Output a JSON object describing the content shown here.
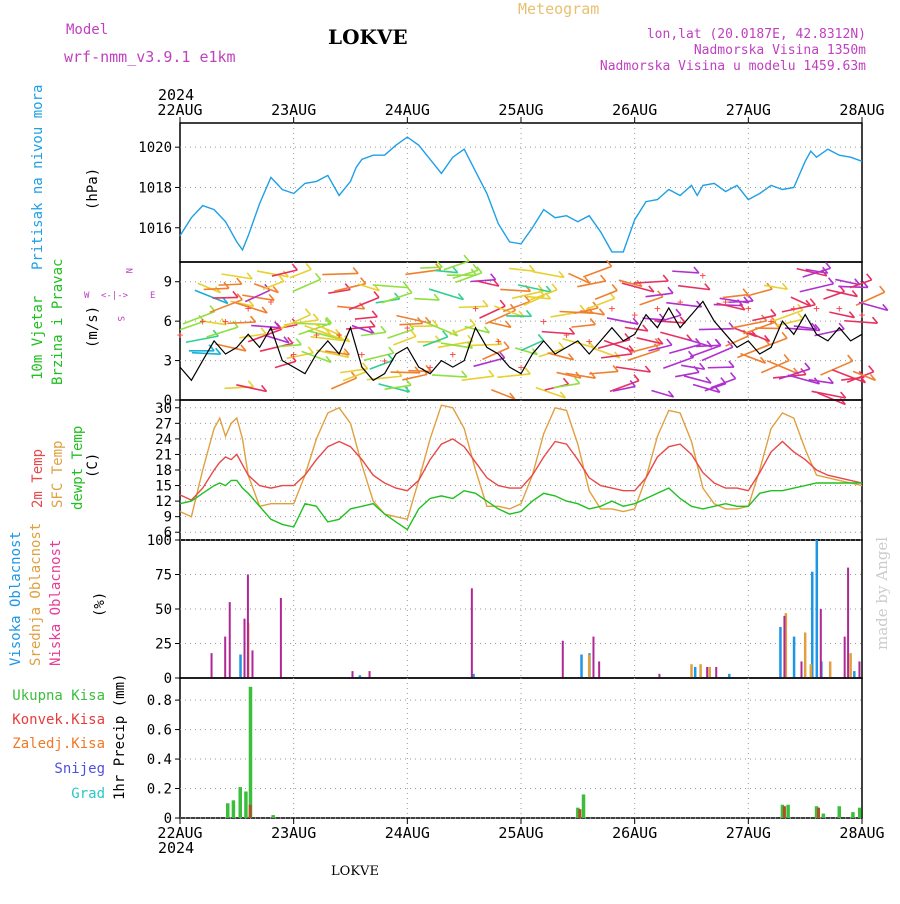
{
  "header": {
    "model_label": "Model",
    "model_name": "wrf-nmm_v3.9.1 e1km",
    "station": "LOKVE",
    "meteogram_label": "Meteogram",
    "lonlat": "lon,lat (20.0187E, 42.8312N)",
    "elevation": "Nadmorska Visina 1350m",
    "model_elevation": "Nadmorska Visina u modelu 1459.63m",
    "year": "2024",
    "footer_station": "LOKVE",
    "credit": "made by Angel"
  },
  "colors": {
    "pressure": "#1ea0e6",
    "temp2m": "#e84848",
    "sfc_temp": "#e0a040",
    "dewpoint": "#20c020",
    "high_cloud": "#1e96e6",
    "mid_cloud": "#e0a040",
    "low_cloud": "#b02896",
    "precip_total": "#3cbe3c",
    "precip_conv": "#b05028",
    "wind_speed": "#000000",
    "gust": "#ff4040",
    "convkisa_label": "#e83c3c",
    "zaledj_label": "#f07828",
    "snijeg_label": "#5050e0",
    "grad_label": "#28c8c8",
    "title_magenta": "#c040c0",
    "title_orange": "#e8c070"
  },
  "x_axis": {
    "top_labels": [
      "22AUG",
      "23AUG",
      "24AUG",
      "25AUG",
      "26AUG",
      "27AUG",
      "28AUG"
    ],
    "bottom_labels": [
      "22AUG",
      "23AUG",
      "24AUG",
      "25AUG",
      "26AUG",
      "27AUG",
      "28AUG"
    ],
    "start_year": "2024",
    "end_year": "2024"
  },
  "panels": {
    "pressure": {
      "label": "Pritisak na nivou mora",
      "unit": "(hPa)",
      "yticks": [
        "1016",
        "1018",
        "1020"
      ]
    },
    "wind": {
      "label1": "10m Vjetar",
      "label2": "Brzina i Pravac",
      "unit": "(m/s)",
      "yticks": [
        "0",
        "3",
        "6",
        "9"
      ],
      "compass": {
        "n": "N",
        "s": "S",
        "w": "W",
        "e": "E"
      }
    },
    "temperature": {
      "label_2m": "2m Temp",
      "label_sfc": "SFC Temp",
      "label_dew": "dewpt Temp",
      "unit": "(C)",
      "yticks": [
        "6",
        "9",
        "12",
        "15",
        "18",
        "21",
        "24",
        "27",
        "30"
      ]
    },
    "cloud": {
      "label_high": "Visoka Oblacnost",
      "label_mid": "Srednja Oblacnost",
      "label_low": "Niska Oblacnost",
      "unit": "(%)",
      "yticks": [
        "0",
        "25",
        "50",
        "75",
        "100"
      ]
    },
    "precip": {
      "legend": [
        "Ukupna Kisa",
        "Konvek.Kisa",
        "Zaledj.Kisa",
        "Snijeg",
        "Grad"
      ],
      "axis_label": "1hr Precip (mm)",
      "yticks": [
        "0",
        "0.2",
        "0.4",
        "0.6",
        "0.8"
      ]
    }
  },
  "chart_data": {
    "type": "line",
    "x_unit": "days since 2024-08-22 00:00",
    "pressure": {
      "ylim": [
        1014.3,
        1021.2
      ],
      "x": [
        0,
        0.1,
        0.2,
        0.3,
        0.4,
        0.5,
        0.55,
        0.6,
        0.7,
        0.8,
        0.9,
        1.0,
        1.1,
        1.2,
        1.3,
        1.4,
        1.5,
        1.55,
        1.6,
        1.7,
        1.8,
        1.9,
        2.0,
        2.1,
        2.2,
        2.3,
        2.4,
        2.5,
        2.6,
        2.7,
        2.8,
        2.9,
        3.0,
        3.1,
        3.2,
        3.3,
        3.4,
        3.5,
        3.6,
        3.7,
        3.8,
        3.9,
        4.0,
        4.1,
        4.2,
        4.3,
        4.4,
        4.5,
        4.55,
        4.6,
        4.7,
        4.8,
        4.9,
        5.0,
        5.1,
        5.2,
        5.3,
        5.4,
        5.5,
        5.55,
        5.6,
        5.7,
        5.8,
        5.9,
        6.0
      ],
      "values": [
        1015.6,
        1016.5,
        1017.1,
        1016.9,
        1016.3,
        1015.3,
        1014.9,
        1015.6,
        1017.2,
        1018.5,
        1017.9,
        1017.7,
        1018.2,
        1018.3,
        1018.6,
        1017.6,
        1018.3,
        1019.0,
        1019.4,
        1019.6,
        1019.6,
        1020.1,
        1020.5,
        1020.1,
        1019.4,
        1018.7,
        1019.5,
        1019.9,
        1018.8,
        1017.7,
        1016.2,
        1015.3,
        1015.2,
        1016.0,
        1016.9,
        1016.5,
        1016.6,
        1016.3,
        1016.6,
        1015.8,
        1014.8,
        1014.8,
        1016.4,
        1017.3,
        1017.4,
        1017.9,
        1017.6,
        1018.1,
        1017.6,
        1018.1,
        1018.2,
        1017.8,
        1018.1,
        1017.4,
        1017.7,
        1018.1,
        1017.9,
        1018.0,
        1019.3,
        1019.8,
        1019.5,
        1019.9,
        1019.6,
        1019.5,
        1019.3
      ]
    },
    "wind": {
      "ylim": [
        0,
        10.5
      ],
      "x": [
        0,
        0.1,
        0.2,
        0.3,
        0.4,
        0.5,
        0.6,
        0.7,
        0.8,
        0.9,
        1.0,
        1.1,
        1.2,
        1.3,
        1.4,
        1.5,
        1.6,
        1.7,
        1.8,
        1.9,
        2.0,
        2.1,
        2.2,
        2.3,
        2.4,
        2.5,
        2.6,
        2.7,
        2.8,
        2.9,
        3.0,
        3.1,
        3.2,
        3.3,
        3.4,
        3.5,
        3.6,
        3.7,
        3.8,
        3.9,
        4.0,
        4.1,
        4.2,
        4.3,
        4.4,
        4.5,
        4.6,
        4.7,
        4.8,
        4.9,
        5.0,
        5.1,
        5.2,
        5.3,
        5.4,
        5.5,
        5.6,
        5.7,
        5.8,
        5.9,
        6.0
      ],
      "speed": [
        2.5,
        1.5,
        3.0,
        4.5,
        3.5,
        4.0,
        5.0,
        4.0,
        5.5,
        3.0,
        2.5,
        2.0,
        3.5,
        4.5,
        3.5,
        5.5,
        2.5,
        1.5,
        2.0,
        3.5,
        4.0,
        2.5,
        2.0,
        3.0,
        2.5,
        3.0,
        5.5,
        4.0,
        3.5,
        2.5,
        2.0,
        3.5,
        4.5,
        3.5,
        4.0,
        4.5,
        3.5,
        4.5,
        5.5,
        4.5,
        5.0,
        6.5,
        5.5,
        7.0,
        5.5,
        6.5,
        7.5,
        6.0,
        5.0,
        4.0,
        4.5,
        3.5,
        4.0,
        6.0,
        5.0,
        6.5,
        5.0,
        4.5,
        5.5,
        4.5,
        5.0
      ],
      "gust": [
        5.0,
        3.5,
        6.0,
        7.0,
        6.0,
        6.5,
        7.0,
        5.5,
        7.5,
        4.5,
        3.5,
        3.0,
        5.0,
        6.0,
        5.0,
        7.0,
        3.5,
        2.0,
        3.0,
        5.0,
        5.5,
        3.5,
        2.5,
        4.0,
        3.5,
        4.0,
        7.0,
        5.5,
        4.5,
        3.0,
        2.5,
        4.5,
        6.0,
        4.5,
        5.0,
        6.0,
        4.5,
        6.5,
        7.0,
        6.0,
        6.5,
        8.0,
        7.0,
        8.5,
        7.5,
        8.0,
        9.5,
        8.0,
        7.5,
        6.0,
        7.0,
        5.0,
        6.0,
        8.0,
        7.0,
        8.5,
        7.0,
        6.0,
        7.0,
        6.0,
        6.5
      ]
    },
    "temperature": {
      "ylim": [
        4.5,
        31.5
      ],
      "x": [
        0,
        0.1,
        0.2,
        0.3,
        0.35,
        0.4,
        0.45,
        0.5,
        0.55,
        0.6,
        0.7,
        0.8,
        0.9,
        1.0,
        1.1,
        1.2,
        1.3,
        1.4,
        1.5,
        1.6,
        1.7,
        1.8,
        1.9,
        2.0,
        2.1,
        2.2,
        2.3,
        2.4,
        2.5,
        2.6,
        2.7,
        2.8,
        2.9,
        3.0,
        3.1,
        3.2,
        3.3,
        3.4,
        3.5,
        3.6,
        3.7,
        3.8,
        3.9,
        4.0,
        4.1,
        4.2,
        4.3,
        4.4,
        4.5,
        4.6,
        4.7,
        4.8,
        4.9,
        5.0,
        5.1,
        5.2,
        5.3,
        5.4,
        5.5,
        5.6,
        5.7,
        5.8,
        5.9,
        6.0
      ],
      "t2m": [
        13.2,
        12.2,
        14.5,
        18.0,
        19.5,
        20.5,
        20.0,
        21.0,
        19.0,
        17.0,
        15.0,
        14.5,
        15.0,
        15.0,
        17.0,
        20.0,
        22.5,
        23.5,
        22.5,
        20.0,
        17.0,
        15.5,
        14.5,
        14.0,
        16.0,
        20.0,
        23.0,
        24.0,
        22.5,
        19.5,
        16.5,
        15.0,
        14.5,
        14.5,
        17.0,
        20.5,
        23.5,
        23.0,
        20.0,
        16.5,
        15.0,
        14.5,
        14.0,
        14.0,
        16.5,
        20.5,
        22.5,
        23.0,
        21.0,
        17.5,
        15.5,
        14.5,
        14.5,
        14.0,
        17.5,
        21.5,
        23.5,
        21.5,
        20.0,
        18.0,
        17.0,
        16.5,
        16.0,
        15.5
      ],
      "sfc": [
        10.0,
        9.0,
        18.0,
        26.0,
        28.0,
        24.5,
        27.0,
        28.0,
        24.0,
        17.0,
        11.0,
        11.5,
        11.5,
        11.5,
        17.0,
        24.0,
        29.0,
        30.0,
        27.0,
        19.0,
        12.0,
        9.5,
        9.0,
        8.5,
        16.0,
        24.0,
        30.5,
        30.0,
        26.0,
        18.0,
        11.0,
        11.0,
        10.5,
        11.5,
        17.0,
        25.0,
        30.0,
        29.5,
        23.0,
        14.0,
        10.5,
        10.5,
        10.0,
        10.5,
        16.5,
        24.5,
        29.5,
        29.0,
        23.5,
        14.5,
        11.5,
        10.5,
        10.5,
        11.0,
        18.0,
        26.0,
        29.0,
        28.0,
        22.0,
        17.0,
        16.5,
        16.0,
        15.5,
        15.0
      ],
      "dewpt": [
        11.5,
        12.0,
        13.5,
        15.0,
        15.5,
        15.0,
        16.0,
        16.0,
        14.5,
        13.5,
        11.0,
        8.5,
        7.5,
        7.0,
        11.5,
        11.0,
        8.0,
        8.5,
        10.5,
        11.0,
        11.5,
        9.5,
        8.0,
        6.5,
        10.5,
        12.5,
        13.0,
        12.5,
        14.0,
        13.5,
        12.0,
        10.5,
        9.5,
        10.0,
        12.0,
        13.5,
        13.0,
        12.0,
        11.5,
        10.5,
        11.0,
        12.0,
        11.0,
        11.5,
        12.5,
        13.5,
        14.5,
        12.5,
        11.0,
        10.5,
        11.0,
        11.5,
        11.0,
        11.0,
        13.5,
        14.0,
        14.0,
        14.5,
        15.0,
        15.5,
        15.5,
        15.5,
        15.5,
        15.5
      ]
    },
    "cloud": {
      "ylim": [
        0,
        100
      ],
      "high": {
        "x": [
          0.55,
          1.6,
          2.6,
          3.55,
          3.62,
          4.55,
          4.85,
          5.3,
          5.42,
          5.58,
          5.62,
          5.66,
          5.95
        ],
        "values": [
          17,
          2,
          3,
          17,
          18,
          8,
          3,
          37,
          30,
          77,
          100,
          12,
          5
        ]
      },
      "mid": {
        "x": [
          0.6,
          3.6,
          4.5,
          4.58,
          4.66,
          5.33,
          5.5,
          5.55,
          5.72,
          5.9
        ],
        "values": [
          40,
          17,
          10,
          10,
          8,
          47,
          33,
          10,
          12,
          18
        ]
      },
      "low": {
        "x": [
          0.26,
          0.38,
          0.42,
          0.55,
          0.58,
          0.62,
          0.87,
          1.5,
          1.65,
          2.55,
          3.35,
          3.62,
          3.67,
          4.2,
          4.62,
          4.7,
          5.3,
          5.45,
          5.62,
          5.83,
          5.86,
          5.96
        ],
        "values": [
          18,
          30,
          55,
          43,
          75,
          20,
          58,
          5,
          5,
          65,
          27,
          30,
          12,
          3,
          8,
          8,
          45,
          12,
          50,
          30,
          80,
          12
        ]
      }
    },
    "precip": {
      "ylim": [
        0,
        0.95
      ],
      "total": {
        "x": [
          0.42,
          0.47,
          0.53,
          0.58,
          0.62,
          0.82,
          3.5,
          3.55,
          5.3,
          5.35,
          5.6,
          5.66,
          5.8,
          5.92,
          5.98
        ],
        "values": [
          0.1,
          0.12,
          0.21,
          0.18,
          0.89,
          0.02,
          0.07,
          0.16,
          0.09,
          0.09,
          0.08,
          0.03,
          0.08,
          0.04,
          0.07
        ]
      },
      "conv": {
        "x": [
          0.6,
          3.5,
          5.3,
          5.6
        ],
        "values": [
          0.09,
          0.06,
          0.08,
          0.07
        ]
      }
    }
  }
}
